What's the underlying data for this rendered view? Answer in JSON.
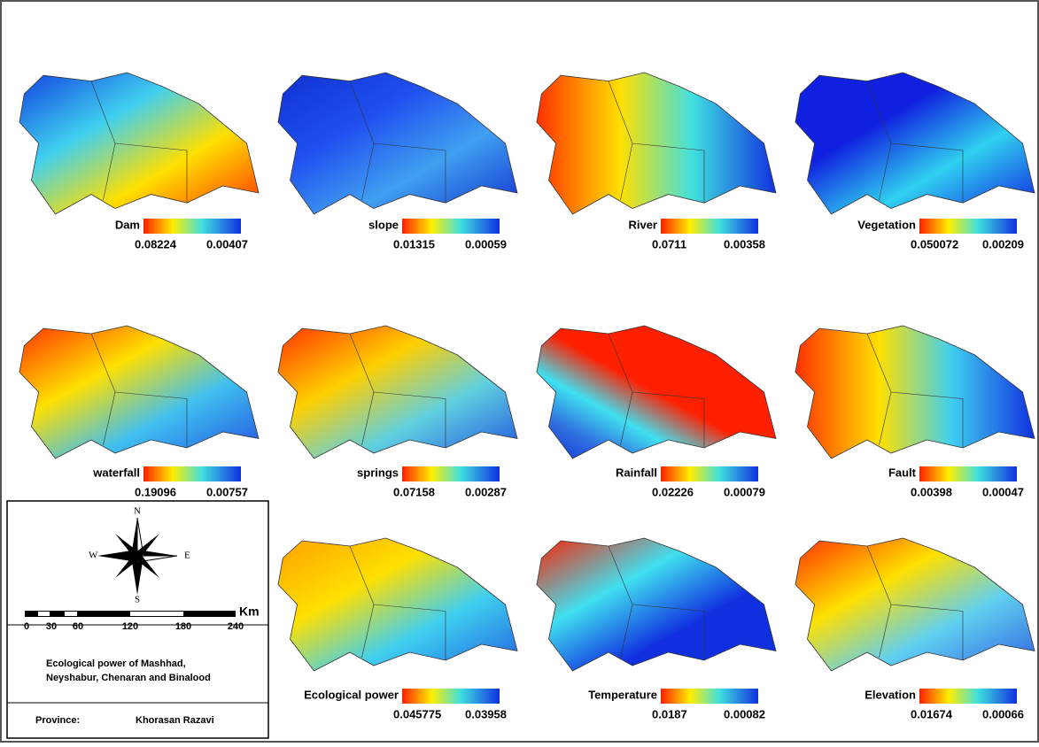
{
  "panels": [
    {
      "name": "Dam",
      "high": "0.08224",
      "low": "0.00407"
    },
    {
      "name": "slope",
      "high": "0.01315",
      "low": "0.00059"
    },
    {
      "name": "River",
      "high": "0.0711",
      "low": "0.00358"
    },
    {
      "name": "Vegetation",
      "high": "0.050072",
      "low": "0.00209"
    },
    {
      "name": "waterfall",
      "high": "0.19096",
      "low": "0.00757"
    },
    {
      "name": "springs",
      "high": "0.07158",
      "low": "0.00287"
    },
    {
      "name": "Rainfall",
      "high": "0.02226",
      "low": "0.00079"
    },
    {
      "name": "Fault",
      "high": "0.00398",
      "low": "0.00047"
    },
    {
      "name": "Ecological power",
      "high": "0.045775",
      "low": "0.03958"
    },
    {
      "name": "Temperature",
      "high": "0.0187",
      "low": "0.00082"
    },
    {
      "name": "Elevation",
      "high": "0.01674",
      "low": "0.00066"
    }
  ],
  "legend": {
    "compass": {
      "n": "N",
      "s": "S",
      "e": "E",
      "w": "W"
    },
    "scale": {
      "ticks": [
        "0",
        "30",
        "60",
        "120",
        "180",
        "240"
      ],
      "unit": "Km"
    },
    "title": [
      "Ecological power of Mashhad,",
      "Neyshabur, Chenaran and Binalood"
    ],
    "province_label": "Province:",
    "province": "Khorasan Razavi"
  }
}
